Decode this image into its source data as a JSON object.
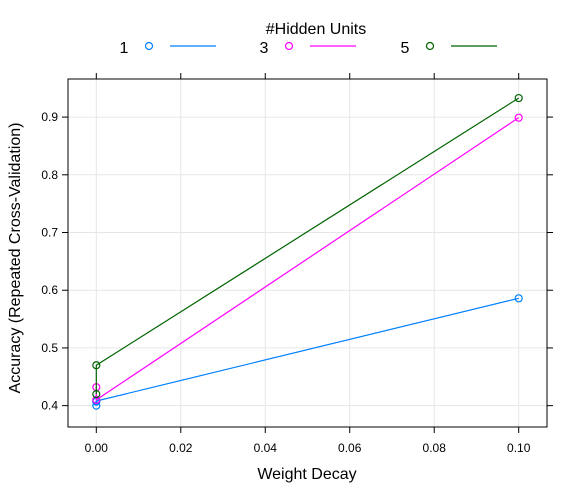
{
  "chart_data": {
    "type": "line",
    "title": "",
    "xlabel": "Weight Decay",
    "ylabel": "Accuracy (Repeated Cross-Validation)",
    "xlim": [
      -0.0067,
      0.1067
    ],
    "ylim": [
      0.363,
      0.966
    ],
    "xticks": [
      0.0,
      0.02,
      0.04,
      0.06,
      0.08,
      0.1
    ],
    "xtick_labels": [
      "0.00",
      "0.02",
      "0.04",
      "0.06",
      "0.08",
      "0.10"
    ],
    "yticks": [
      0.4,
      0.5,
      0.6,
      0.7,
      0.8,
      0.9
    ],
    "ytick_labels": [
      "0.4",
      "0.5",
      "0.6",
      "0.7",
      "0.8",
      "0.9"
    ],
    "grid": true,
    "legend": {
      "title": "#Hidden Units",
      "placement": "top"
    },
    "series": [
      {
        "name": "1",
        "color": "#0080ff",
        "points": [
          {
            "x": 0.0,
            "y": 0.4
          },
          {
            "x": 0.0,
            "y": 0.407
          },
          {
            "x": 0.0,
            "y": 0.408
          },
          {
            "x": 0.1,
            "y": 0.586
          }
        ],
        "line": [
          [
            0.0,
            0.4
          ],
          [
            0.0,
            0.408
          ],
          [
            0.1,
            0.586
          ]
        ]
      },
      {
        "name": "3",
        "color": "#ff00ff",
        "points": [
          {
            "x": 0.0,
            "y": 0.41
          },
          {
            "x": 0.0,
            "y": 0.432
          },
          {
            "x": 0.1,
            "y": 0.899
          }
        ],
        "line": [
          [
            0.0,
            0.432
          ],
          [
            0.0,
            0.41
          ],
          [
            0.1,
            0.899
          ]
        ]
      },
      {
        "name": "5",
        "color": "#006400",
        "points": [
          {
            "x": 0.0,
            "y": 0.42
          },
          {
            "x": 0.0,
            "y": 0.47
          },
          {
            "x": 0.1,
            "y": 0.933
          }
        ],
        "line": [
          [
            0.0,
            0.42
          ],
          [
            0.0,
            0.47
          ],
          [
            0.1,
            0.933
          ]
        ]
      }
    ]
  }
}
